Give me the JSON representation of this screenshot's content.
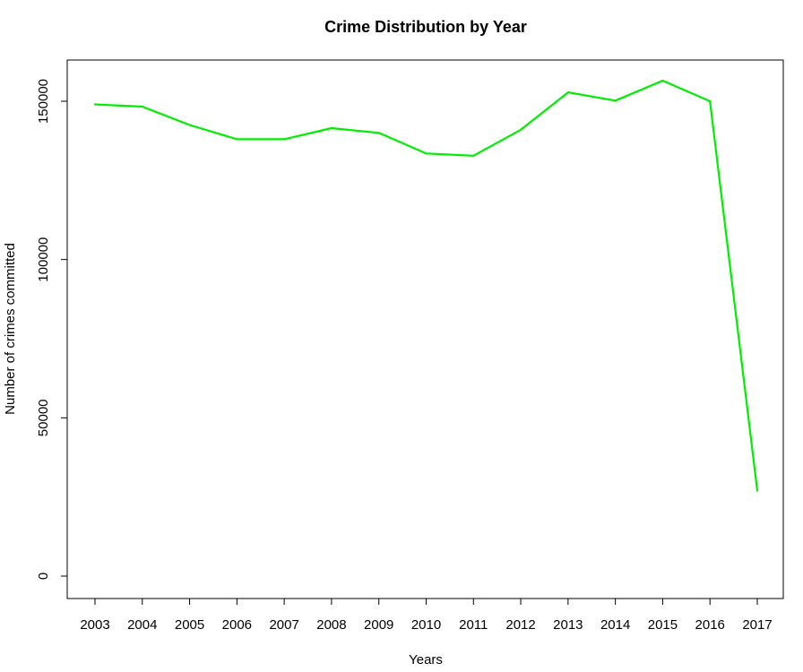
{
  "chart_data": {
    "type": "line",
    "title": "Crime Distribution by Year",
    "xlabel": "Years",
    "ylabel": "Number of crimes committed",
    "x": [
      "2003",
      "2004",
      "2005",
      "2006",
      "2007",
      "2008",
      "2009",
      "2010",
      "2011",
      "2012",
      "2013",
      "2014",
      "2015",
      "2016",
      "2017"
    ],
    "series": [
      {
        "values": [
          149000,
          148300,
          142500,
          138000,
          138000,
          141500,
          140000,
          133500,
          132800,
          141000,
          152800,
          150200,
          156500,
          150000,
          27000
        ],
        "color": "#00ee00"
      }
    ],
    "y_ticks": [
      0,
      50000,
      100000,
      150000
    ],
    "y_tick_labels": [
      "0",
      "50000",
      "100000",
      "150000"
    ],
    "ylim": [
      -4000,
      162000
    ],
    "grid": false,
    "legend": "none"
  }
}
